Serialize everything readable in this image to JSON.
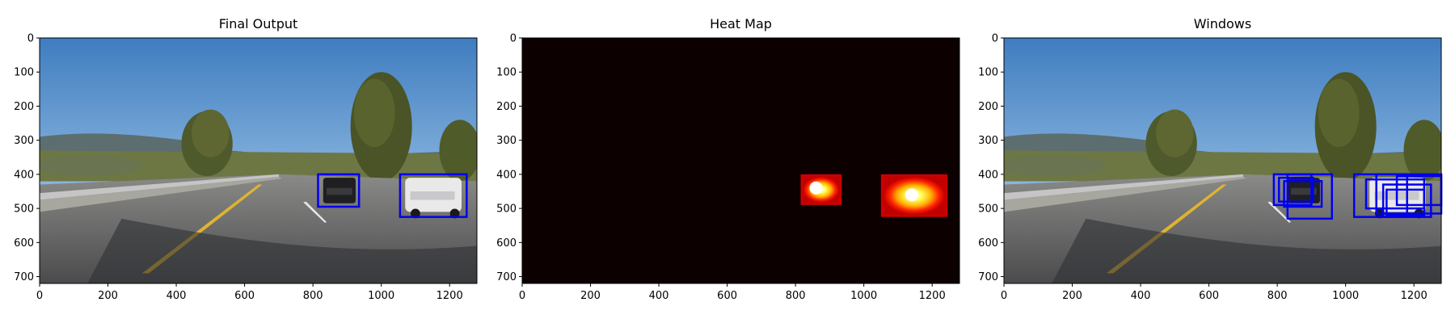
{
  "chart_data": [
    {
      "type": "image",
      "title": "Final Output",
      "xlim": [
        0,
        1280
      ],
      "ylim": [
        720,
        0
      ],
      "xticks": [
        0,
        200,
        400,
        600,
        800,
        1000,
        1200
      ],
      "yticks": [
        0,
        100,
        200,
        300,
        400,
        500,
        600,
        700
      ],
      "image": "road-scene",
      "boxes": [
        {
          "x1": 815,
          "y1": 400,
          "x2": 935,
          "y2": 495
        },
        {
          "x1": 1055,
          "y1": 400,
          "x2": 1250,
          "y2": 525
        }
      ],
      "box_color": "#0000ee"
    },
    {
      "type": "heatmap",
      "title": "Heat Map",
      "xlim": [
        0,
        1280
      ],
      "ylim": [
        720,
        0
      ],
      "xticks": [
        0,
        200,
        400,
        600,
        800,
        1000,
        1200
      ],
      "yticks": [
        0,
        100,
        200,
        300,
        400,
        500,
        600,
        700
      ],
      "background": "#0c0000",
      "blobs": [
        {
          "x1": 815,
          "y1": 400,
          "x2": 935,
          "y2": 490,
          "peak_x": 860,
          "peak_y": 440
        },
        {
          "x1": 1050,
          "y1": 400,
          "x2": 1245,
          "y2": 525,
          "peak_x": 1140,
          "peak_y": 460
        }
      ]
    },
    {
      "type": "image",
      "title": "Windows",
      "xlim": [
        0,
        1280
      ],
      "ylim": [
        720,
        0
      ],
      "xticks": [
        0,
        200,
        400,
        600,
        800,
        1000,
        1200
      ],
      "yticks": [
        0,
        100,
        200,
        300,
        400,
        500,
        600,
        700
      ],
      "image": "road-scene",
      "boxes": [
        {
          "x1": 790,
          "y1": 400,
          "x2": 900,
          "y2": 490
        },
        {
          "x1": 805,
          "y1": 410,
          "x2": 905,
          "y2": 480
        },
        {
          "x1": 830,
          "y1": 400,
          "x2": 960,
          "y2": 530
        },
        {
          "x1": 820,
          "y1": 420,
          "x2": 930,
          "y2": 495
        },
        {
          "x1": 1025,
          "y1": 400,
          "x2": 1180,
          "y2": 525
        },
        {
          "x1": 1060,
          "y1": 415,
          "x2": 1230,
          "y2": 500
        },
        {
          "x1": 1090,
          "y1": 400,
          "x2": 1280,
          "y2": 515
        },
        {
          "x1": 1110,
          "y1": 430,
          "x2": 1250,
          "y2": 525
        },
        {
          "x1": 1150,
          "y1": 405,
          "x2": 1280,
          "y2": 490
        },
        {
          "x1": 1120,
          "y1": 445,
          "x2": 1230,
          "y2": 520
        }
      ],
      "box_color": "#0000ee"
    }
  ]
}
